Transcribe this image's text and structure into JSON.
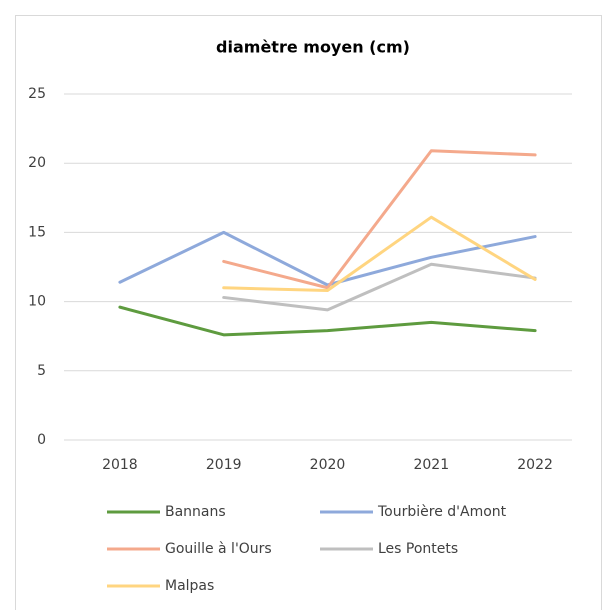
{
  "chart_data": {
    "type": "line",
    "title": "diamètre moyen (cm)",
    "categories": [
      "2018",
      "2019",
      "2020",
      "2021",
      "2022"
    ],
    "series": [
      {
        "name": "Bannans",
        "color": "#5e9b3f",
        "values": [
          9.6,
          7.6,
          7.9,
          8.5,
          7.9
        ]
      },
      {
        "name": "Tourbière d'Amont",
        "color": "#8ea9db",
        "values": [
          11.4,
          15.0,
          11.2,
          13.2,
          14.7
        ]
      },
      {
        "name": "Gouille à l'Ours",
        "color": "#f4a98c",
        "values": [
          null,
          12.9,
          11.0,
          20.9,
          20.6
        ]
      },
      {
        "name": "Les Pontets",
        "color": "#bfbfbf",
        "values": [
          null,
          10.3,
          9.4,
          12.7,
          11.7
        ]
      },
      {
        "name": "Malpas",
        "color": "#ffd580",
        "values": [
          null,
          11.0,
          10.8,
          16.1,
          11.6
        ]
      }
    ],
    "ylim": [
      0,
      25
    ],
    "yticks": [
      0,
      5,
      10,
      15,
      20,
      25
    ],
    "grid": true,
    "legend": "bottom"
  }
}
